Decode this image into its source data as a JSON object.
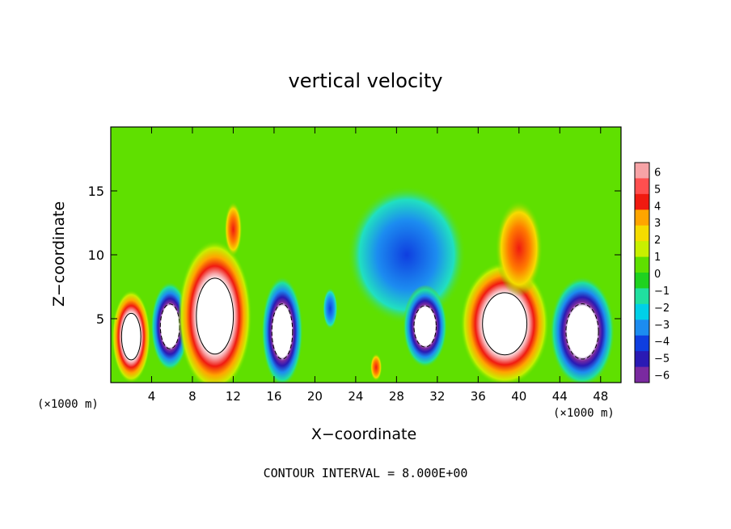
{
  "chart_data": {
    "type": "heatmap",
    "title": "vertical velocity",
    "xlabel": "X−coordinate",
    "ylabel": "Z−coordinate",
    "x_unit_left": "(×1000 m)",
    "x_unit_right": "(×1000 m)",
    "xlim": [
      0,
      50
    ],
    "ylim": [
      0,
      20
    ],
    "x_ticks": [
      4,
      8,
      12,
      16,
      20,
      24,
      28,
      32,
      36,
      40,
      44,
      48
    ],
    "y_ticks": [
      5,
      10,
      15
    ],
    "colorbar": {
      "labels": [
        "6",
        "5",
        "4",
        "3",
        "2",
        "1",
        "0",
        "−1",
        "−2",
        "−3",
        "−4",
        "−5",
        "−6"
      ],
      "colors": [
        "#f7a3a6",
        "#ff4f4f",
        "#f01a10",
        "#ffa500",
        "#f5dc00",
        "#c8f000",
        "#5fe000",
        "#1fd21f",
        "#20e0a0",
        "#00d0e8",
        "#1c8cf0",
        "#0f3ee0",
        "#2a1ab4",
        "#7a2aa0"
      ]
    },
    "footer": "CONTOUR INTERVAL = 8.000E+00",
    "cells": [
      {
        "x": 2.0,
        "z": 3.6,
        "rx": 1.3,
        "rz": 2.7,
        "level": 8
      },
      {
        "x": 5.8,
        "z": 4.4,
        "rx": 1.3,
        "rz": 2.6,
        "level": -8
      },
      {
        "x": 10.2,
        "z": 5.2,
        "rx": 2.5,
        "rz": 4.4,
        "level": 8
      },
      {
        "x": 16.8,
        "z": 4.0,
        "rx": 1.4,
        "rz": 3.2,
        "level": -8
      },
      {
        "x": 21.5,
        "z": 5.8,
        "rx": 0.5,
        "rz": 1.2,
        "level": -5
      },
      {
        "x": 29.0,
        "z": 10.0,
        "rx": 4.0,
        "rz": 4.0,
        "level": -3
      },
      {
        "x": 30.8,
        "z": 4.4,
        "rx": 1.5,
        "rz": 2.4,
        "level": -8
      },
      {
        "x": 38.6,
        "z": 4.6,
        "rx": 3.0,
        "rz": 3.6,
        "level": 8
      },
      {
        "x": 40.0,
        "z": 10.5,
        "rx": 1.6,
        "rz": 2.8,
        "level": 4
      },
      {
        "x": 46.2,
        "z": 4.0,
        "rx": 2.2,
        "rz": 3.2,
        "level": -8
      },
      {
        "x": 26.0,
        "z": 1.2,
        "rx": 0.4,
        "rz": 0.8,
        "level": 6
      },
      {
        "x": 12.0,
        "z": 12.0,
        "rx": 0.6,
        "rz": 1.6,
        "level": 4
      }
    ]
  }
}
